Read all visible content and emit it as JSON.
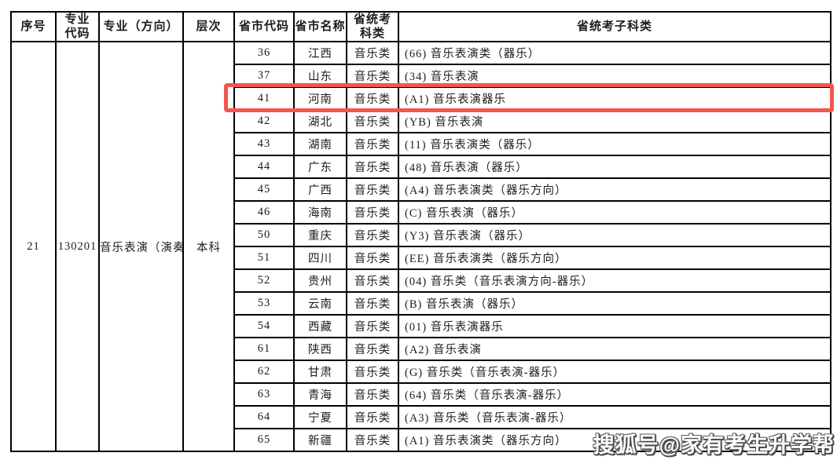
{
  "table": {
    "headers": {
      "serial": "序号",
      "major_code": "专业\n代码",
      "major": "专业（方向）",
      "level": "层次",
      "province_code": "省市代码",
      "province_name": "省市名称",
      "exam_category": "省统考\n科类",
      "exam_subcategory": "省统考子科类"
    },
    "merged_row": {
      "serial": "21",
      "major_code": "130201",
      "major": "音乐表演（演奏）",
      "level": "本科"
    },
    "rows": [
      {
        "code": "36",
        "province": "江西",
        "category": "音乐类",
        "subcategory": "(66) 音乐表演类（器乐）",
        "highlighted": false
      },
      {
        "code": "37",
        "province": "山东",
        "category": "音乐类",
        "subcategory": "(34) 音乐表演",
        "highlighted": false
      },
      {
        "code": "41",
        "province": "河南",
        "category": "音乐类",
        "subcategory": "(A1) 音乐表演器乐",
        "highlighted": true
      },
      {
        "code": "42",
        "province": "湖北",
        "category": "音乐类",
        "subcategory": "(YB) 音乐表演",
        "highlighted": false
      },
      {
        "code": "43",
        "province": "湖南",
        "category": "音乐类",
        "subcategory": "(11) 音乐表演类（器乐）",
        "highlighted": false
      },
      {
        "code": "44",
        "province": "广东",
        "category": "音乐类",
        "subcategory": "(48) 音乐表演（器乐）",
        "highlighted": false
      },
      {
        "code": "45",
        "province": "广西",
        "category": "音乐类",
        "subcategory": "(A4) 音乐表演类（器乐方向）",
        "highlighted": false
      },
      {
        "code": "46",
        "province": "海南",
        "category": "音乐类",
        "subcategory": "(C) 音乐表演（器乐）",
        "highlighted": false
      },
      {
        "code": "50",
        "province": "重庆",
        "category": "音乐类",
        "subcategory": "(Y3) 音乐表演（器乐）",
        "highlighted": false
      },
      {
        "code": "51",
        "province": "四川",
        "category": "音乐类",
        "subcategory": "(EE) 音乐表演类（器乐方向）",
        "highlighted": false
      },
      {
        "code": "52",
        "province": "贵州",
        "category": "音乐类",
        "subcategory": "(04) 音乐类（音乐表演方向-器乐）",
        "highlighted": false
      },
      {
        "code": "53",
        "province": "云南",
        "category": "音乐类",
        "subcategory": "(B) 音乐表演（器乐）",
        "highlighted": false
      },
      {
        "code": "54",
        "province": "西藏",
        "category": "音乐类",
        "subcategory": "(01) 音乐表演器乐",
        "highlighted": false
      },
      {
        "code": "61",
        "province": "陕西",
        "category": "音乐类",
        "subcategory": "(A2) 音乐表演",
        "highlighted": false
      },
      {
        "code": "62",
        "province": "甘肃",
        "category": "音乐类",
        "subcategory": "(G) 音乐类（音乐表演-器乐）",
        "highlighted": false
      },
      {
        "code": "63",
        "province": "青海",
        "category": "音乐类",
        "subcategory": "(64) 音乐类（音乐表演-器乐）",
        "highlighted": false
      },
      {
        "code": "64",
        "province": "宁夏",
        "category": "音乐类",
        "subcategory": "(A3) 音乐类（音乐表演-器乐）",
        "highlighted": false
      },
      {
        "code": "65",
        "province": "新疆",
        "category": "音乐类",
        "subcategory": "(A1) 音乐表演类（器乐方向）",
        "highlighted": false
      }
    ]
  },
  "highlight": {
    "border_color": "#f4564f",
    "highlighted_row_code": "41"
  },
  "watermark": {
    "text": "搜狐号@家有考生升学帮"
  },
  "colors": {
    "table_border": "#000000",
    "background": "#ffffff"
  }
}
